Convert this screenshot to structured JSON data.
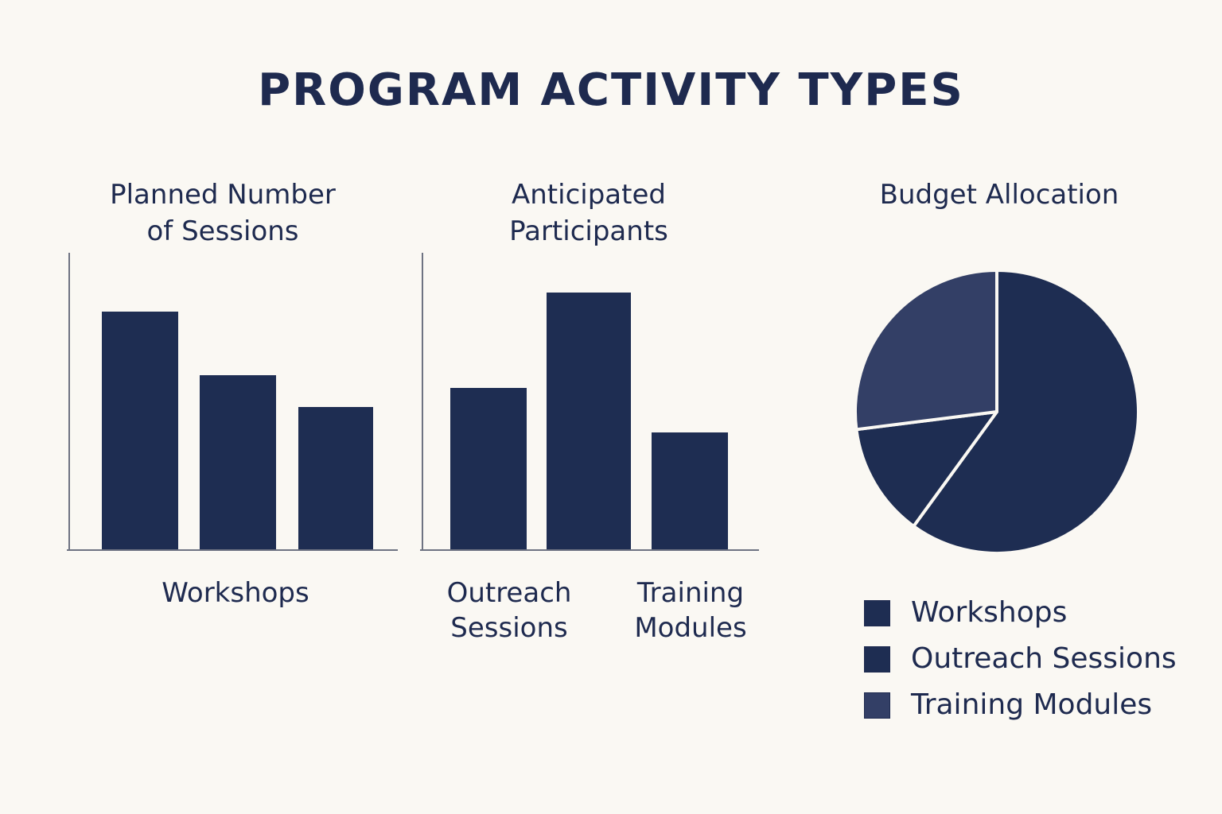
{
  "title": "PROGRAM ACTIVITY TYPES",
  "colors": {
    "background": "#faf8f3",
    "bar": "#1e2d52",
    "axis": "#6e7382",
    "pie_dark": "#1e2d52",
    "pie_light": "#333f66",
    "text": "#1e2a4f"
  },
  "chart_data": [
    {
      "type": "bar",
      "title": "Planned Number\nof Sessions",
      "categories": [
        "Workshops",
        "",
        ""
      ],
      "values": [
        75,
        55,
        45
      ],
      "category_label": "Workshops",
      "ylim": [
        0,
        94
      ],
      "grid": false
    },
    {
      "type": "bar",
      "title": "Anticipated\nParticipants",
      "categories": [
        "Outreach\nSessions",
        "",
        "Training\nModules"
      ],
      "values": [
        51,
        81,
        37
      ],
      "ylim": [
        0,
        94
      ],
      "grid": false
    },
    {
      "type": "pie",
      "title": "Budget Allocation",
      "labels": [
        "Workshops",
        "Outreach Sessions",
        "Training Modules"
      ],
      "values": [
        60,
        13,
        27
      ],
      "colors": [
        "#1e2d52",
        "#1e2d52",
        "#333f66"
      ],
      "legend": "bottom"
    }
  ]
}
